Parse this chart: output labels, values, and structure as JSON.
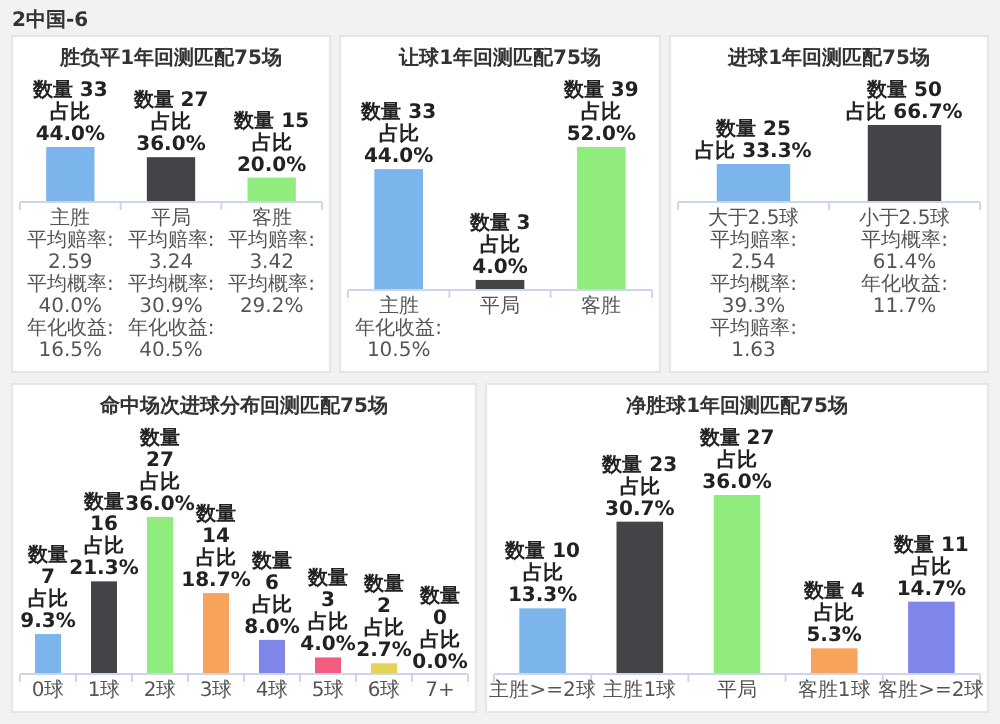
{
  "chart_data": [
    {
      "type": "bar",
      "title": "胜负平1年回测匹配75场",
      "subtitle": "2中国-6",
      "categories": [
        "主胜",
        "平局",
        "客胜"
      ],
      "values": [
        33,
        27,
        15
      ],
      "colors": [
        "#7cb5ec",
        "#434348",
        "#90ed7d"
      ],
      "value_labels": [
        "数量 33\n占比 44.0%",
        "数量 27\n占比 36.0%",
        "数量 15\n占比 20.0%"
      ],
      "annotations": [
        "平均赔率: 2.59",
        "平均概率: 40.0%",
        "年化收益: 16.5%",
        "平均赔率: 3.24",
        "平均概率: 30.9%",
        "年化收益: 40.5%",
        "平均赔率: 3.42",
        "平均概率: 29.2%"
      ]
    },
    {
      "type": "bar",
      "title": "让球1年回测匹配75场",
      "categories": [
        "主胜",
        "平局",
        "客胜"
      ],
      "values": [
        33,
        3,
        39
      ],
      "colors": [
        "#7cb5ec",
        "#434348",
        "#90ed7d"
      ],
      "value_labels": [
        "数量 33\n占比 44.0%",
        "数量 3\n占比 4.0%",
        "数量 39\n占比 52.0%"
      ],
      "annotations": [
        "年化收益: 10.5%"
      ]
    },
    {
      "type": "bar",
      "title": "进球1年回测匹配75场",
      "categories": [
        "大于2.5球",
        "小于2.5球"
      ],
      "values": [
        25,
        50
      ],
      "colors": [
        "#7cb5ec",
        "#434348"
      ],
      "value_labels": [
        "数量 25\n占比 33.3%",
        "数量 50\n占比 66.7%"
      ],
      "annotations": [
        "平均赔率: 2.54",
        "平均概率: 39.3%",
        "平均赔率: 1.63",
        "平均概率: 61.4%",
        "年化收益: 11.7%"
      ]
    },
    {
      "type": "bar",
      "title": "命中场次进球分布回测匹配75场",
      "categories": [
        "0球",
        "1球",
        "2球",
        "3球",
        "4球",
        "5球",
        "6球",
        "7+"
      ],
      "values": [
        7,
        16,
        27,
        14,
        6,
        3,
        2,
        0
      ],
      "colors": [
        "#7cb5ec",
        "#434348",
        "#90ed7d",
        "#f7a35c",
        "#8085e9",
        "#f15c80",
        "#e4d354",
        "#2b908f"
      ],
      "value_labels": [
        "数量 7\n占比 9.3%",
        "数量 16\n占比 21.3%",
        "数量 27\n占比 36.0%",
        "数量 14\n占比 18.7%",
        "数量 6\n占比 8.0%",
        "数量 3\n占比 4.0%",
        "数量 2\n占比 2.7%",
        "数量 0\n占比 0.0%"
      ]
    },
    {
      "type": "bar",
      "title": "净胜球1年回测匹配75场",
      "categories": [
        "主胜>=2球",
        "主胜1球",
        "平局",
        "客胜1球",
        "客胜>=2球"
      ],
      "values": [
        10,
        23,
        27,
        4,
        11
      ],
      "colors": [
        "#7cb5ec",
        "#434348",
        "#90ed7d",
        "#f7a35c",
        "#8085e9"
      ],
      "value_labels": [
        "数量 10\n占比 13.3%",
        "数量 23\n占比 30.7%",
        "数量 27\n占比 36.0%",
        "数量 4\n占比 5.3%",
        "数量 11\n占比 14.7%"
      ]
    }
  ]
}
